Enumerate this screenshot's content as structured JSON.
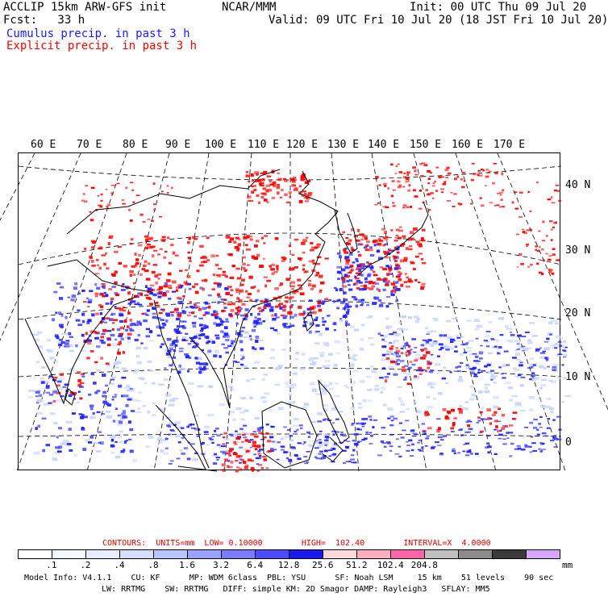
{
  "header": {
    "title": "ACCLIP 15km ARW-GFS init",
    "center": "NCAR/MMM",
    "init": "Init: 00 UTC Thu 09 Jul 20",
    "fcst": "Fcst:   33 h",
    "valid": "Valid: 09 UTC Fri 10 Jul 20 (18 JST Fri 10 Jul 20)",
    "legend_cumulus": "Cumulus precip. in past 3 h",
    "legend_explicit": "Explicit precip. in past 3 h"
  },
  "map": {
    "lon_labels": [
      "60 E",
      "70 E",
      "80 E",
      "90 E",
      "100 E",
      "110 E",
      "120 E",
      "130 E",
      "140 E",
      "150 E",
      "160 E",
      "170 E"
    ],
    "lat_labels": [
      "40 N",
      "30 N",
      "20 N",
      "10 N",
      "0"
    ],
    "colors": {
      "cumulus": "#2020ff",
      "explicit": "#ff0000",
      "coast": "#000000"
    }
  },
  "contours": {
    "text": "CONTOURS:  UNITS=mm  LOW= 0.10000        HIGH=  102.40        INTERVAL=X  4.0000"
  },
  "colorbar": {
    "colors": [
      "#ffffff",
      "#f4f8ff",
      "#e6eeff",
      "#d4e0ff",
      "#b7c7ff",
      "#9aa4ff",
      "#7b7bff",
      "#4d4dff",
      "#1a1aee",
      "#ffdada",
      "#ffb0c0",
      "#ff66aa",
      "#c0c0c0",
      "#8c8c8c",
      "#3a3a3a",
      "#d9a6ff"
    ],
    "ticks": [
      ".1",
      ".2",
      ".4",
      ".8",
      "1.6",
      "3.2",
      "6.4",
      "12.8",
      "25.6",
      "51.2",
      "102.4",
      "204.8"
    ],
    "units": "mm"
  },
  "model_info": {
    "line1": "Model Info: V4.1.1    CU: KF      MP: WDM 6class  PBL: YSU      SF: Noah LSM     15 km    51 levels    90 sec",
    "line2": "LW: RRTMG    SW: RRTMG   DIFF: simple KM: 2D Smagor DAMP: Rayleigh3   SFLAY: MM5"
  }
}
